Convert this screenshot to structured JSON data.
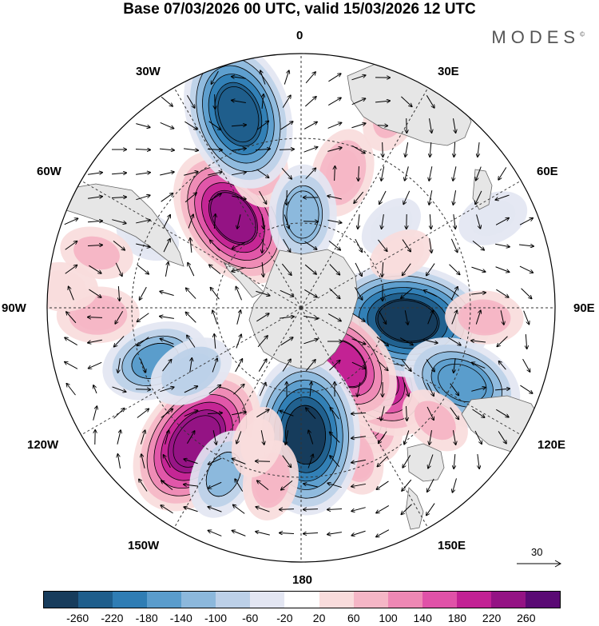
{
  "title": "Base 07/03/2026 00 UTC, valid 15/03/2026 12 UTC",
  "brand": "MODES",
  "brand_mark": "©",
  "longitude_labels": {
    "lon_0": "0",
    "lon_30e": "30E",
    "lon_60e": "60E",
    "lon_90e": "90E",
    "lon_120e": "120E",
    "lon_150e": "150E",
    "lon_180": "180",
    "lon_150w": "150W",
    "lon_120w": "120W",
    "lon_90w": "90W",
    "lon_60w": "60W",
    "lon_30w": "30W"
  },
  "reference_vector": "30",
  "colors": {
    "ocean": "#ffffff",
    "land": "#e6e6e6",
    "grid": "#333333"
  },
  "colorbar": {
    "colors": [
      "#173c5c",
      "#1f5e8c",
      "#2f7db4",
      "#5a9ccc",
      "#8cb8dc",
      "#bcd0e8",
      "#e3e6f2",
      "#ffffff",
      "#f9dcdc",
      "#f5b6c6",
      "#ee88b4",
      "#e052a8",
      "#c22294",
      "#941384",
      "#5a0a74"
    ],
    "tick_labels": [
      "-260",
      "-220",
      "-180",
      "-140",
      "-100",
      "-60",
      "-20",
      "20",
      "60",
      "100",
      "140",
      "180",
      "220",
      "260"
    ]
  },
  "anomaly_centers": [
    {
      "lon": 17,
      "colat": 50,
      "value": 95
    },
    {
      "lon": 48,
      "colat": 43,
      "value": -45
    },
    {
      "lon": 150,
      "colat": 44,
      "value": 125
    },
    {
      "lon": 108,
      "colat": 17,
      "value": -65
    },
    {
      "lon": 133,
      "colat": 36,
      "value": 210
    },
    {
      "lon": 97,
      "colat": 38,
      "value": -270
    },
    {
      "lon": 62,
      "colat": 40,
      "value": 40
    },
    {
      "lon": 115,
      "colat": 63,
      "value": -170
    },
    {
      "lon": 93,
      "colat": 65,
      "value": 70
    },
    {
      "lon": 130,
      "colat": 62,
      "value": 60
    },
    {
      "lon": 160,
      "colat": 56,
      "value": 70
    },
    {
      "lon": 142,
      "colat": 25,
      "value": 185
    },
    {
      "lon": 170,
      "colat": 32,
      "value": 80
    },
    {
      "lon": 168,
      "colat": 42,
      "value": 110
    },
    {
      "lon": 178,
      "colat": 45,
      "value": -260
    },
    {
      "lon": -142,
      "colat": 60,
      "value": 250
    },
    {
      "lon": -110,
      "colat": 55,
      "value": -140
    },
    {
      "lon": -92,
      "colat": 72,
      "value": 80
    },
    {
      "lon": -120,
      "colat": 45,
      "value": -90
    },
    {
      "lon": -155,
      "colat": 65,
      "value": -100
    },
    {
      "lon": -170,
      "colat": 62,
      "value": 75
    },
    {
      "lon": -162,
      "colat": 50,
      "value": 55
    },
    {
      "lon": -37,
      "colat": 40,
      "value": 230
    },
    {
      "lon": -17,
      "colat": 53,
      "value": 90
    },
    {
      "lon": -18,
      "colat": 72,
      "value": -240
    },
    {
      "lon": 1,
      "colat": 33,
      "value": -120
    },
    {
      "lon": -65,
      "colat": 60,
      "value": -40
    },
    {
      "lon": -75,
      "colat": 75,
      "value": 60
    },
    {
      "lon": -85,
      "colat": 85,
      "value": 55
    },
    {
      "lon": 25,
      "colat": 75,
      "value": 60
    },
    {
      "lon": 65,
      "colat": 75,
      "value": -55
    }
  ]
}
